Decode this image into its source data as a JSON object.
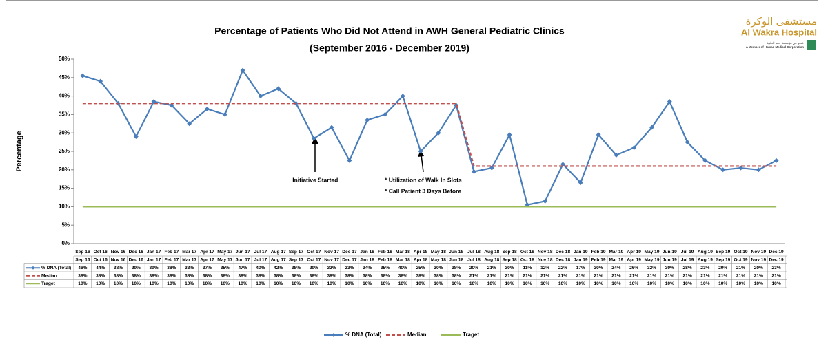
{
  "chart_data": {
    "type": "line",
    "title": "Percentage of Patients Who Did Not Attend in AWH General Pediatric Clinics",
    "subtitle": "(September 2016 - December 2019)",
    "y_axis_label": "Percentage",
    "logo": {
      "arabic": "مستشفى الوكرة",
      "name": "Al Wakra Hospital",
      "arabic_member": "عضو في مؤسسة حمد الطبية",
      "member": "A Member of Hamad Medical Corporation"
    },
    "annotations": [
      {
        "text": "Initiative Started",
        "category": 13
      },
      {
        "text": "* Utilization of Walk In Slots",
        "category": 19
      },
      {
        "text": "* Call Patient 3 Days Before",
        "category": 19
      }
    ],
    "categories": [
      "Sep 16",
      "Oct 16",
      "Nov 16",
      "Dec 16",
      "Jan 17",
      "Feb 17",
      "Mar 17",
      "Apr 17",
      "May 17",
      "Jun 17",
      "Jul 17",
      "Aug 17",
      "Sep 17",
      "Oct 17",
      "Nov 17",
      "Dec 17",
      "Jan 18",
      "Feb 18",
      "Mar 18",
      "Apr 18",
      "May 18",
      "Jun 18",
      "Jul 18",
      "Aug 18",
      "Sep 18",
      "Oct 18",
      "Nov 18",
      "Dec 18",
      "Jan 19",
      "Feb 19",
      "Mar 19",
      "Apr 19",
      "May 19",
      "Jun 19",
      "Jul 19",
      "Aug 19",
      "Sep 19",
      "Oct 19",
      "Nov 19",
      "Dec 19"
    ],
    "series": [
      {
        "name": "% DNA (Total)",
        "color": "#4a7ebb",
        "style": "solid",
        "markers": true,
        "values": [
          45.5,
          44,
          38,
          29,
          38.5,
          37.5,
          32.5,
          36.5,
          35,
          47,
          40,
          42,
          38,
          28.5,
          31.5,
          22.5,
          33.5,
          35,
          40,
          25,
          30,
          37.5,
          19.5,
          20.5,
          29.5,
          10.5,
          11.5,
          21.5,
          16.5,
          29.5,
          24,
          26,
          31.5,
          38.5,
          27.5,
          22.5,
          20,
          20.5,
          20,
          22.5
        ],
        "value_labels": [
          "46%",
          "44%",
          "38%",
          "29%",
          "39%",
          "38%",
          "33%",
          "37%",
          "35%",
          "47%",
          "40%",
          "42%",
          "38%",
          "29%",
          "32%",
          "23%",
          "34%",
          "35%",
          "40%",
          "25%",
          "30%",
          "38%",
          "20%",
          "21%",
          "30%",
          "11%",
          "12%",
          "22%",
          "17%",
          "30%",
          "24%",
          "26%",
          "32%",
          "39%",
          "28%",
          "23%",
          "20%",
          "21%",
          "20%",
          "23%"
        ]
      },
      {
        "name": "Median",
        "color": "#c0504d",
        "style": "dashed",
        "markers": false,
        "values": [
          38,
          38,
          38,
          38,
          38,
          38,
          38,
          38,
          38,
          38,
          38,
          38,
          38,
          38,
          38,
          38,
          38,
          38,
          38,
          38,
          38,
          38,
          21,
          21,
          21,
          21,
          21,
          21,
          21,
          21,
          21,
          21,
          21,
          21,
          21,
          21,
          21,
          21,
          21,
          21
        ],
        "value_labels": [
          "38%",
          "38%",
          "38%",
          "38%",
          "38%",
          "38%",
          "38%",
          "38%",
          "38%",
          "38%",
          "38%",
          "38%",
          "38%",
          "38%",
          "38%",
          "38%",
          "38%",
          "38%",
          "38%",
          "38%",
          "38%",
          "38%",
          "21%",
          "21%",
          "21%",
          "21%",
          "21%",
          "21%",
          "21%",
          "21%",
          "21%",
          "21%",
          "21%",
          "21%",
          "21%",
          "21%",
          "21%",
          "21%",
          "21%",
          "21%"
        ]
      },
      {
        "name": "Traget",
        "color": "#9bbb59",
        "style": "solid",
        "markers": false,
        "values": [
          10,
          10,
          10,
          10,
          10,
          10,
          10,
          10,
          10,
          10,
          10,
          10,
          10,
          10,
          10,
          10,
          10,
          10,
          10,
          10,
          10,
          10,
          10,
          10,
          10,
          10,
          10,
          10,
          10,
          10,
          10,
          10,
          10,
          10,
          10,
          10,
          10,
          10,
          10,
          10
        ],
        "value_labels": [
          "10%",
          "10%",
          "10%",
          "10%",
          "10%",
          "10%",
          "10%",
          "10%",
          "10%",
          "10%",
          "10%",
          "10%",
          "10%",
          "10%",
          "10%",
          "10%",
          "10%",
          "10%",
          "10%",
          "10%",
          "10%",
          "10%",
          "10%",
          "10%",
          "10%",
          "10%",
          "10%",
          "10%",
          "10%",
          "10%",
          "10%",
          "10%",
          "10%",
          "10%",
          "10%",
          "10%",
          "10%",
          "10%",
          "10%",
          "10%"
        ]
      }
    ],
    "ylim": [
      0,
      50
    ],
    "yticks": [
      {
        "value": 0,
        "label": "0%"
      },
      {
        "value": 5,
        "label": "5%"
      },
      {
        "value": 10,
        "label": "10%"
      },
      {
        "value": 15,
        "label": "15%"
      },
      {
        "value": 20,
        "label": "20%"
      },
      {
        "value": 25,
        "label": "25%"
      },
      {
        "value": 30,
        "label": "30%"
      },
      {
        "value": 35,
        "label": "35%"
      },
      {
        "value": 40,
        "label": "40%"
      },
      {
        "value": 45,
        "label": "45%"
      },
      {
        "value": 50,
        "label": "50%"
      }
    ],
    "grid": false,
    "legend": "bottom",
    "data_table": true
  }
}
